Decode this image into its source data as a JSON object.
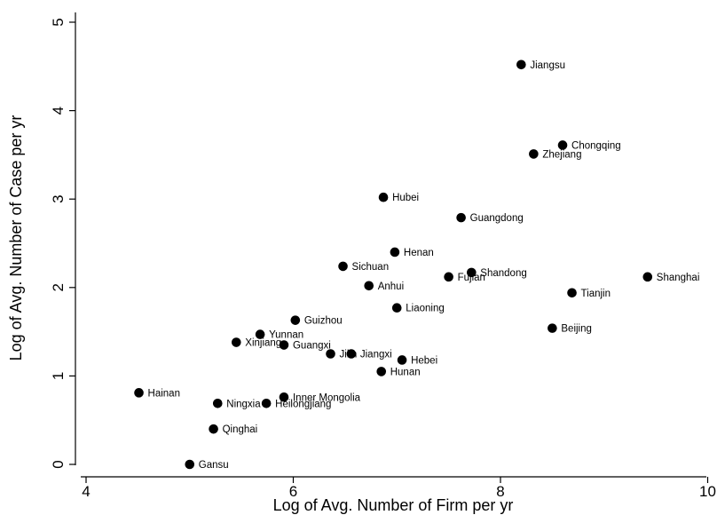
{
  "chart_data": {
    "type": "scatter",
    "title": "",
    "xlabel": "Log of Avg. Number of Firm per yr",
    "ylabel": "Log of Avg. Number of Case per yr",
    "xlim": [
      3.95,
      10.05
    ],
    "ylim": [
      0,
      5.12
    ],
    "xticks": [
      4,
      6,
      8,
      10
    ],
    "yticks": [
      0,
      1,
      2,
      3,
      4,
      5
    ],
    "grid": false,
    "color": "#000000",
    "points": [
      {
        "label": "Jiangsu",
        "x": 8.2,
        "y": 4.52
      },
      {
        "label": "Chongqing",
        "x": 8.6,
        "y": 3.61
      },
      {
        "label": "Zhejiang",
        "x": 8.32,
        "y": 3.51
      },
      {
        "label": "Hubei",
        "x": 6.87,
        "y": 3.02
      },
      {
        "label": "Guangdong",
        "x": 7.62,
        "y": 2.79
      },
      {
        "label": "Henan",
        "x": 6.98,
        "y": 2.4
      },
      {
        "label": "Sichuan",
        "x": 6.48,
        "y": 2.24
      },
      {
        "label": "Shandong",
        "x": 7.72,
        "y": 2.17
      },
      {
        "label": "Fujian",
        "x": 7.5,
        "y": 2.12
      },
      {
        "label": "Shanghai",
        "x": 9.42,
        "y": 2.12
      },
      {
        "label": "Anhui",
        "x": 6.73,
        "y": 2.02
      },
      {
        "label": "Tianjin",
        "x": 8.69,
        "y": 1.94
      },
      {
        "label": "Liaoning",
        "x": 7.0,
        "y": 1.77
      },
      {
        "label": "Guizhou",
        "x": 6.02,
        "y": 1.63
      },
      {
        "label": "Beijing",
        "x": 8.5,
        "y": 1.54
      },
      {
        "label": "Yunnan",
        "x": 5.68,
        "y": 1.47
      },
      {
        "label": "Xinjiang",
        "x": 5.45,
        "y": 1.38
      },
      {
        "label": "Guangxi",
        "x": 5.91,
        "y": 1.35
      },
      {
        "label": "Jilin",
        "x": 6.36,
        "y": 1.25
      },
      {
        "label": "Jiangxi",
        "x": 6.56,
        "y": 1.25
      },
      {
        "label": "Hebei",
        "x": 7.05,
        "y": 1.18
      },
      {
        "label": "Hunan",
        "x": 6.85,
        "y": 1.05
      },
      {
        "label": "Hainan",
        "x": 4.51,
        "y": 0.81
      },
      {
        "label": "Inner Mongolia",
        "x": 5.91,
        "y": 0.76
      },
      {
        "label": "Ningxia",
        "x": 5.27,
        "y": 0.69
      },
      {
        "label": "Heilongjiang",
        "x": 5.74,
        "y": 0.69
      },
      {
        "label": "Qinghai",
        "x": 5.23,
        "y": 0.4
      },
      {
        "label": "Gansu",
        "x": 5.0,
        "y": 0.0
      }
    ]
  }
}
